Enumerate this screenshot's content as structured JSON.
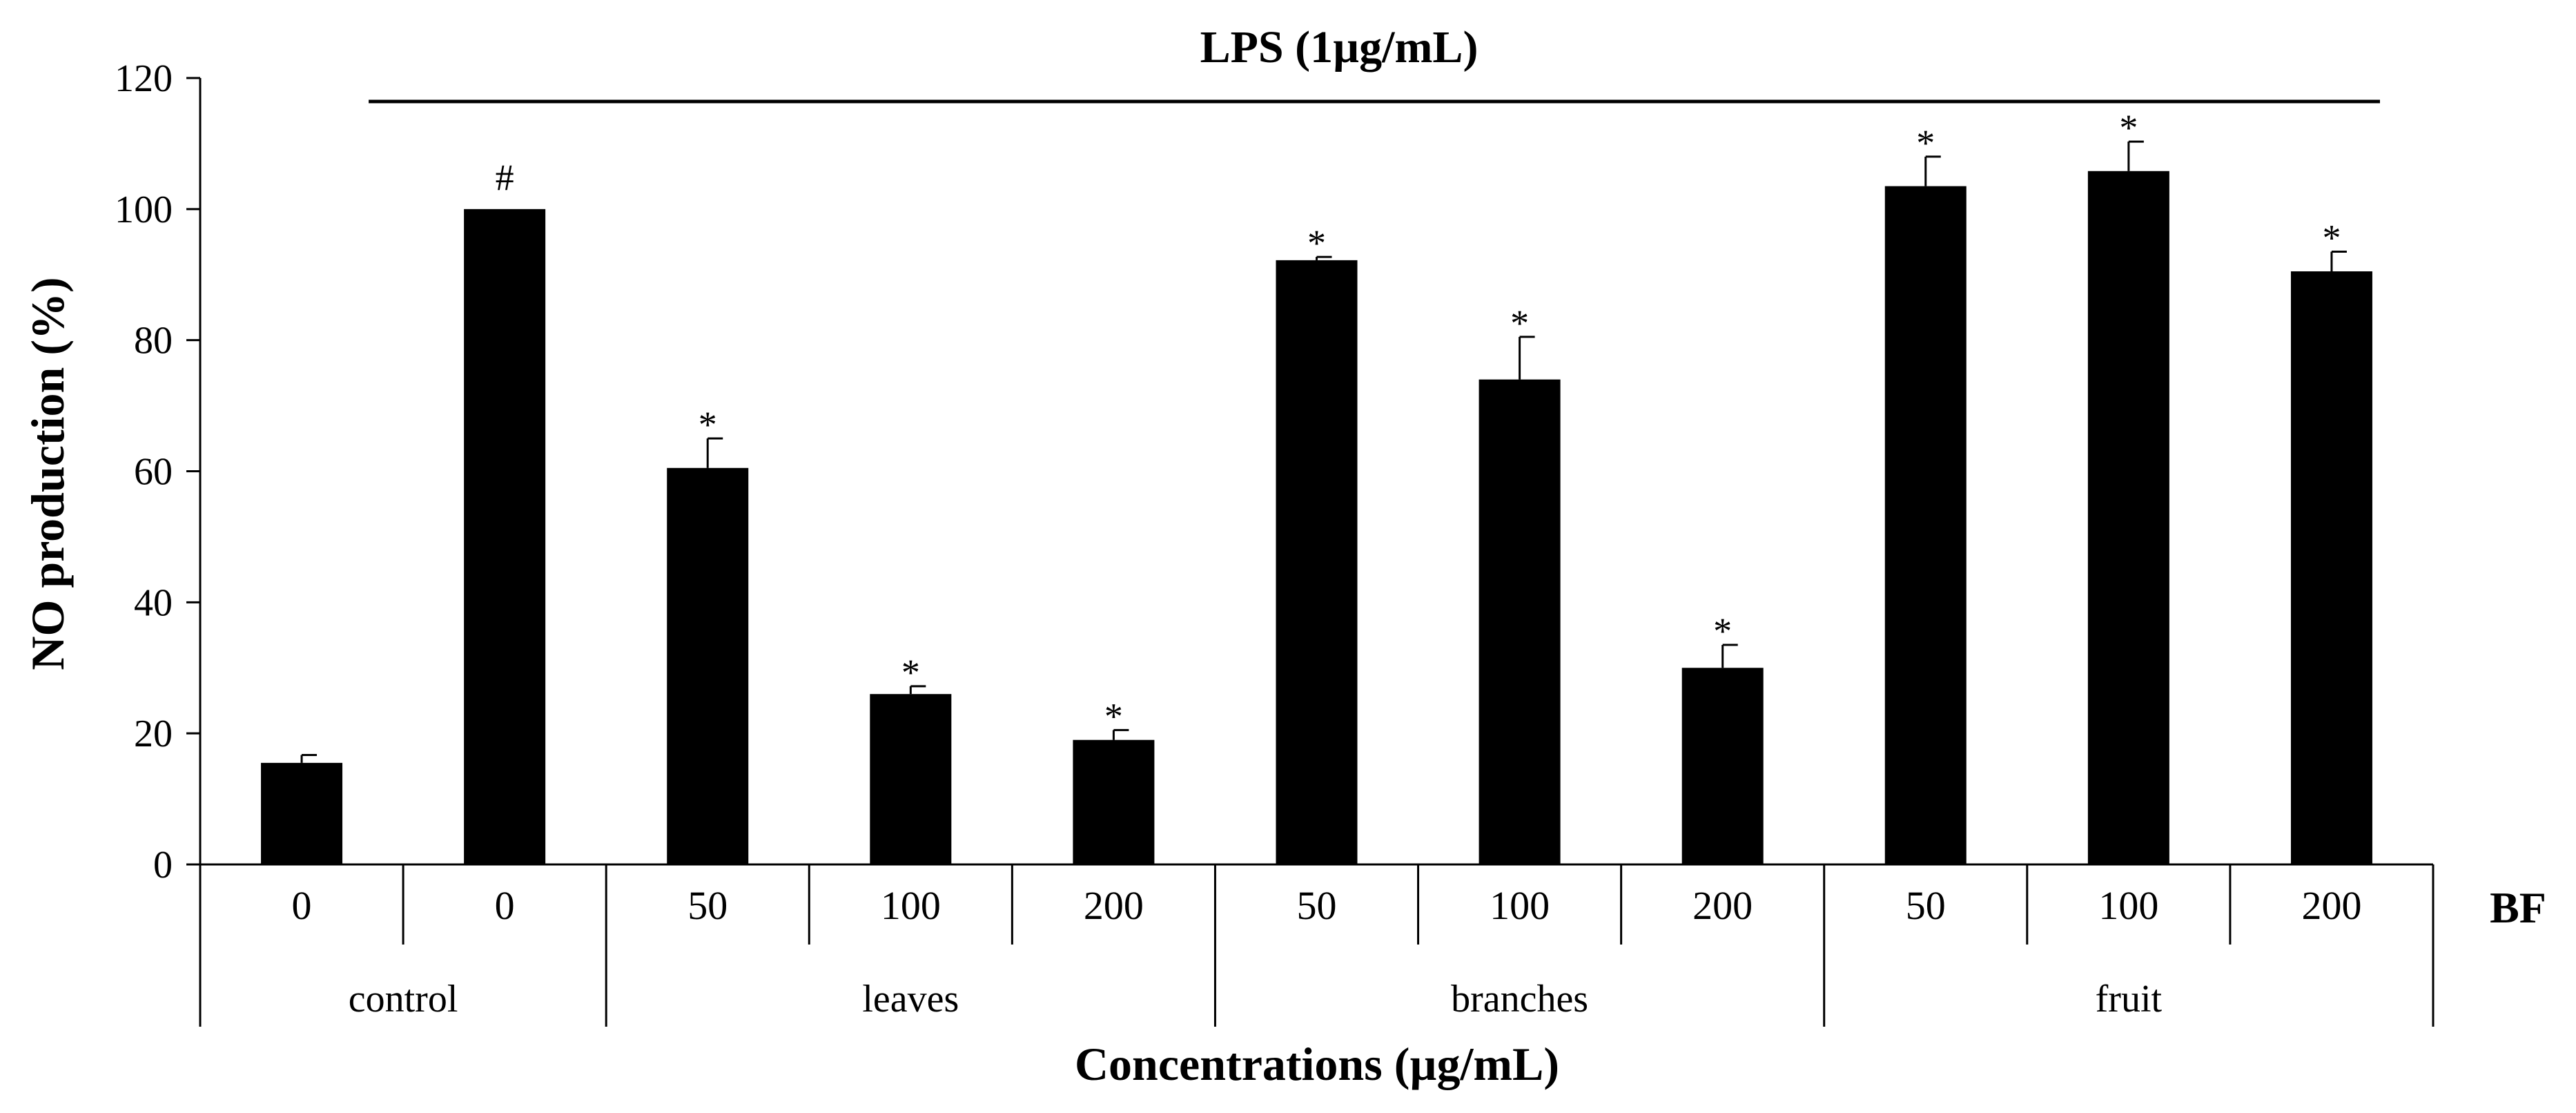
{
  "chart_data": {
    "type": "bar",
    "title": "",
    "ylabel": "NO production (%)",
    "xlabel": "Concentrations (µg/mL)",
    "ylim": [
      0,
      120
    ],
    "yticks": [
      "0",
      "20",
      "40",
      "60",
      "80",
      "100",
      "120"
    ],
    "ytick_values": [
      0,
      20,
      40,
      60,
      80,
      100,
      120
    ],
    "categories": [
      "0",
      "0",
      "50",
      "100",
      "200",
      "50",
      "100",
      "200",
      "50",
      "100",
      "200"
    ],
    "values": [
      15.5,
      100,
      60.5,
      26,
      19,
      92.2,
      74,
      30,
      103.5,
      105.8,
      90.5
    ],
    "errors": [
      1.2,
      0,
      4.5,
      1.2,
      1.5,
      0.5,
      6.5,
      3.5,
      4.5,
      4.5,
      3
    ],
    "annotations": [
      "",
      "#",
      "*",
      "*",
      "*",
      "*",
      "*",
      "*",
      "*",
      "*",
      "*"
    ],
    "groups": [
      {
        "label": "control",
        "count": 2
      },
      {
        "label": "leaves",
        "count": 3
      },
      {
        "label": "branches",
        "count": 3
      },
      {
        "label": "fruit",
        "count": 3
      }
    ],
    "lps_label": "LPS (1µg/mL)",
    "bf_label": "BF",
    "bar_color": "#000000"
  }
}
